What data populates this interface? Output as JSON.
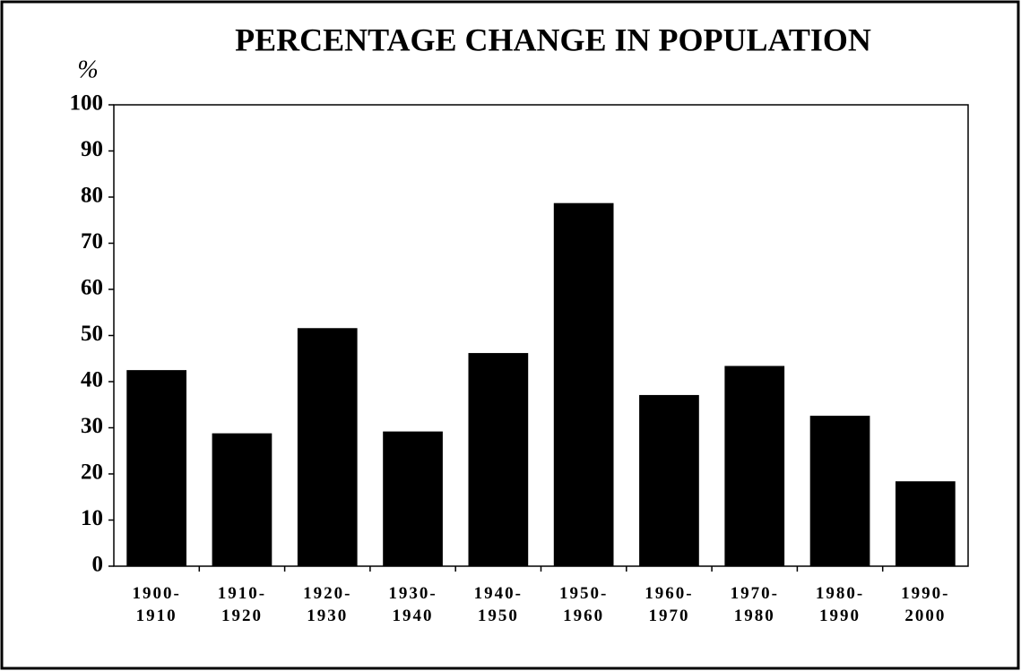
{
  "chart_data": {
    "type": "bar",
    "title": "PERCENTAGE CHANGE IN POPULATION",
    "y_label": "%",
    "categories": [
      "1900-\n1910",
      "1910-\n1920",
      "1920-\n1930",
      "1930-\n1940",
      "1940-\n1950",
      "1950-\n1960",
      "1960-\n1970",
      "1970-\n1980",
      "1980-\n1990",
      "1990-\n2000"
    ],
    "values": [
      42.5,
      28.8,
      51.6,
      29.2,
      46.2,
      78.7,
      37.1,
      43.4,
      32.6,
      18.4
    ],
    "color": "#000000",
    "ylim": [
      0,
      100
    ],
    "yticks": [
      0,
      10,
      20,
      30,
      40,
      50,
      60,
      70,
      80,
      90,
      100
    ],
    "grid": false
  }
}
